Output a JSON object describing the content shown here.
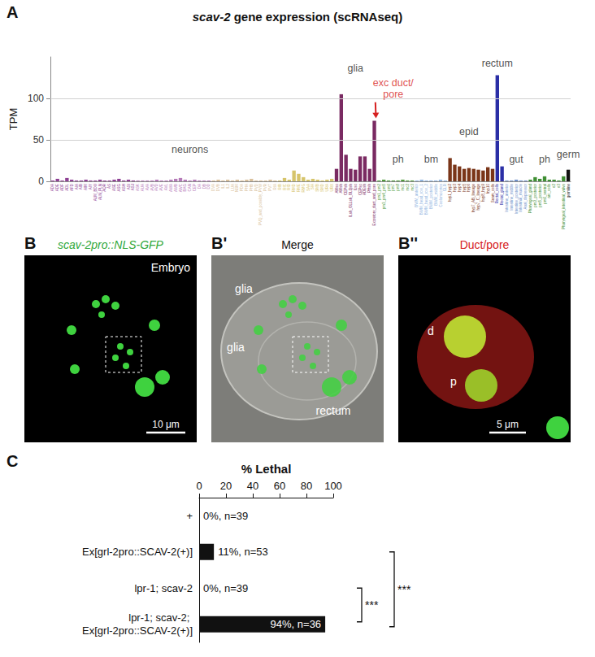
{
  "chart_data": [
    {
      "panel": "A",
      "type": "bar",
      "title": "scav-2 gene expression (scRNAseq)",
      "y_label": "TPM",
      "categories": [
        "ADA",
        "ADE",
        "ADF",
        "ADL",
        "AFD",
        "AIA",
        "AIB",
        "AIM",
        "AIY",
        "ALM_BDU",
        "ALN_PLN",
        "AQR",
        "AS",
        "ASE",
        "ASG",
        "ASH",
        "ASI",
        "ASJ",
        "ASK",
        "AUA",
        "AVA",
        "AVB",
        "AVD",
        "AVE",
        "AVL",
        "AWA",
        "AWB",
        "AWC",
        "BAG",
        "CAN",
        "CEP",
        "DA",
        "DB",
        "DD",
        "DVA",
        "DVB",
        "IL1",
        "IL2",
        "LUA",
        "NSM",
        "PDA",
        "PHA",
        "PHB",
        "PVD",
        "PVQ_and_possibly_PVW",
        "PVR",
        "PVT",
        "RIA",
        "RIB",
        "RIC",
        "RID",
        "RMD",
        "RME",
        "RMG",
        "SAA",
        "SIA",
        "SMB",
        "SMD",
        "URA",
        "URX",
        "AMso",
        "AMsh",
        "CEPsh",
        "ILsh_OLLsh_OLQsh",
        "ILso",
        "CEPso",
        "ADEsh",
        "PHsh",
        "Excretory_duct_and_pore",
        "pm1_pm2",
        "pm3_pm4_pm5",
        "pm6",
        "pm7",
        "pm8",
        "mc1",
        "mc2",
        "mc3",
        "BWM_anterior",
        "BWM_head_row_1",
        "BWM_head_row_2",
        "BWM_posterior",
        "BWM_middle",
        "Coelomocytes",
        "GLR",
        "hyp1_hyp2",
        "hyp3",
        "hyp4",
        "hyp5",
        "hyp6",
        "hyp7_AB_lineage",
        "hyp7_C_lineage",
        "hyp8_hyp9",
        "hyp10",
        "Seam_cells",
        "Rectal_cells",
        "Rectal_gland",
        "Intestine_anterior",
        "Intestine_middle",
        "Intestine_posterior",
        "Intestinal_muscle",
        "Anal_depressor",
        "Pharyngeal_gland",
        "pm3_posterior",
        "pm5_posterior",
        "pm6_ventral",
        "arc_cells",
        "e2",
        "e3",
        "Pharyngeal_intestinal_valve",
        "germline"
      ],
      "values": [
        1,
        3,
        1,
        4,
        2,
        1,
        1,
        2,
        1,
        1,
        2,
        1,
        1,
        2,
        3,
        1,
        2,
        1,
        1,
        1,
        1,
        1,
        2,
        1,
        1,
        2,
        3,
        4,
        2,
        1,
        2,
        1,
        1,
        1,
        1,
        2,
        1,
        2,
        1,
        2,
        1,
        2,
        3,
        1,
        1,
        1,
        2,
        1,
        1,
        4,
        2,
        13,
        9,
        5,
        2,
        3,
        2,
        1,
        2,
        3,
        15,
        105,
        32,
        15,
        14,
        30,
        30,
        15,
        73,
        1,
        2,
        1,
        1,
        1,
        2,
        1,
        1,
        1,
        2,
        1,
        1,
        1,
        2,
        1,
        28,
        20,
        18,
        15,
        16,
        15,
        14,
        13,
        17,
        15,
        128,
        18,
        1,
        1,
        2,
        1,
        1,
        2,
        5,
        3,
        6,
        2,
        2,
        1,
        6,
        14
      ],
      "colors": [
        "#8e3f93",
        "#8e3f93",
        "#8e3f93",
        "#8e3f93",
        "#8e3f93",
        "#8e3f93",
        "#8e3f93",
        "#8e3f93",
        "#8e3f93",
        "#8e3f93",
        "#8e3f93",
        "#8e3f93",
        "#8e3f93",
        "#8e3f93",
        "#8e3f93",
        "#8e3f93",
        "#8e3f93",
        "#8e3f93",
        "#b57ab8",
        "#b57ab8",
        "#b57ab8",
        "#b57ab8",
        "#b57ab8",
        "#b57ab8",
        "#b57ab8",
        "#b57ab8",
        "#b57ab8",
        "#b57ab8",
        "#b57ab8",
        "#b57ab8",
        "#b57ab8",
        "#b57ab8",
        "#b57ab8",
        "#b57ab8",
        "#d9bf9a",
        "#d9bf9a",
        "#d9bf9a",
        "#d9bf9a",
        "#d9bf9a",
        "#d9bf9a",
        "#d9bf9a",
        "#d9bf9a",
        "#d9bf9a",
        "#d9bf9a",
        "#d9bf9a",
        "#d9bf9a",
        "#d9bf9a",
        "#d9bf9a",
        "#d6c46a",
        "#d6c46a",
        "#d6c46a",
        "#d6c46a",
        "#d6c46a",
        "#d6c46a",
        "#d6c46a",
        "#d6c46a",
        "#d6c46a",
        "#d6c46a",
        "#d6c46a",
        "#d6c46a",
        "#7a2a62",
        "#7a2a62",
        "#7a2a62",
        "#7a2a62",
        "#7a2a62",
        "#7a2a62",
        "#7a2a62",
        "#7a2a62",
        "#7a2a62",
        "#4f9a3a",
        "#4f9a3a",
        "#4f9a3a",
        "#4f9a3a",
        "#4f9a3a",
        "#4f9a3a",
        "#4f9a3a",
        "#4f9a3a",
        "#8fb4e0",
        "#8fb4e0",
        "#8fb4e0",
        "#8fb4e0",
        "#8fb4e0",
        "#8fb4e0",
        "#8fb4e0",
        "#7a3518",
        "#7a3518",
        "#7a3518",
        "#7a3518",
        "#7a3518",
        "#7a3518",
        "#7a3518",
        "#7a3518",
        "#7a3518",
        "#7a3518",
        "#2b2fa6",
        "#2b2fa6",
        "#6e8fc9",
        "#6e8fc9",
        "#6e8fc9",
        "#6e8fc9",
        "#6e8fc9",
        "#3f8f33",
        "#3f8f33",
        "#3f8f33",
        "#3f8f33",
        "#3f8f33",
        "#3f8f33",
        "#3f8f33",
        "#3f8f33",
        "#111111"
      ],
      "ylim": [
        0,
        150
      ],
      "yticks": [
        0,
        50,
        100
      ],
      "grid": true,
      "annotations": [
        {
          "text": "neurons",
          "x": "CAN",
          "y": 38
        },
        {
          "text": "glia",
          "x": "ILso",
          "y": 136
        },
        {
          "text": "exc duct/pore",
          "x": "pm7",
          "y": 112,
          "color": "#d62020",
          "arrow_to": "Excretory_duct_and_pore"
        },
        {
          "text": "ph",
          "x": "pm8",
          "y": 26
        },
        {
          "text": "bm",
          "x": "BWM_posterior",
          "y": 26
        },
        {
          "text": "epid",
          "x": "hyp6",
          "y": 60
        },
        {
          "text": "rectum",
          "x": "Rectal_cells",
          "y": 142
        },
        {
          "text": "gut",
          "x": "Intestine_posterior",
          "y": 26
        },
        {
          "text": "ph",
          "x": "pm6_ventral",
          "y": 26
        },
        {
          "text": "germ",
          "x": "germline",
          "y": 32
        }
      ]
    },
    {
      "panel": "C",
      "type": "bar",
      "orientation": "horizontal",
      "x_label": "% Lethal",
      "categories": [
        "+",
        "Ex[grl-2pro::SCAV-2(+)]",
        "lpr-1; scav-2",
        "lpr-1; scav-2; Ex[grl-2pro::SCAV-2(+)]"
      ],
      "values": [
        0,
        11,
        0,
        94
      ],
      "value_labels": [
        "0%, n=39",
        "11%, n=53",
        "0%, n=39",
        "94%, n=36"
      ],
      "data_labels": true,
      "color": "#111111",
      "xlim": [
        0,
        100
      ],
      "xticks": [
        0,
        20,
        40,
        60,
        80,
        100
      ],
      "grid": false,
      "significance": [
        {
          "from": "Ex[grl-2pro::SCAV-2(+)]",
          "to": "lpr-1; scav-2; Ex[grl-2pro::SCAV-2(+)]",
          "label": "***"
        },
        {
          "from": "lpr-1; scav-2",
          "to": "lpr-1; scav-2; Ex[grl-2pro::SCAV-2(+)]",
          "label": "***"
        }
      ]
    }
  ],
  "images": {
    "items": [
      {
        "letter": "B",
        "caption": "scav-2pro::NLS-GFP",
        "color": "#2fa83a",
        "labels": [
          "Embryo"
        ],
        "scale_bar": "10 μm"
      },
      {
        "letter": "B'",
        "caption": "Merge",
        "color": "#111111",
        "labels": [
          "glia",
          "glia",
          "rectum"
        ]
      },
      {
        "letter": "B''",
        "caption": "Duct/pore",
        "color": "#d62020",
        "labels": [
          "d",
          "p"
        ],
        "scale_bar": "5 μm"
      }
    ]
  }
}
